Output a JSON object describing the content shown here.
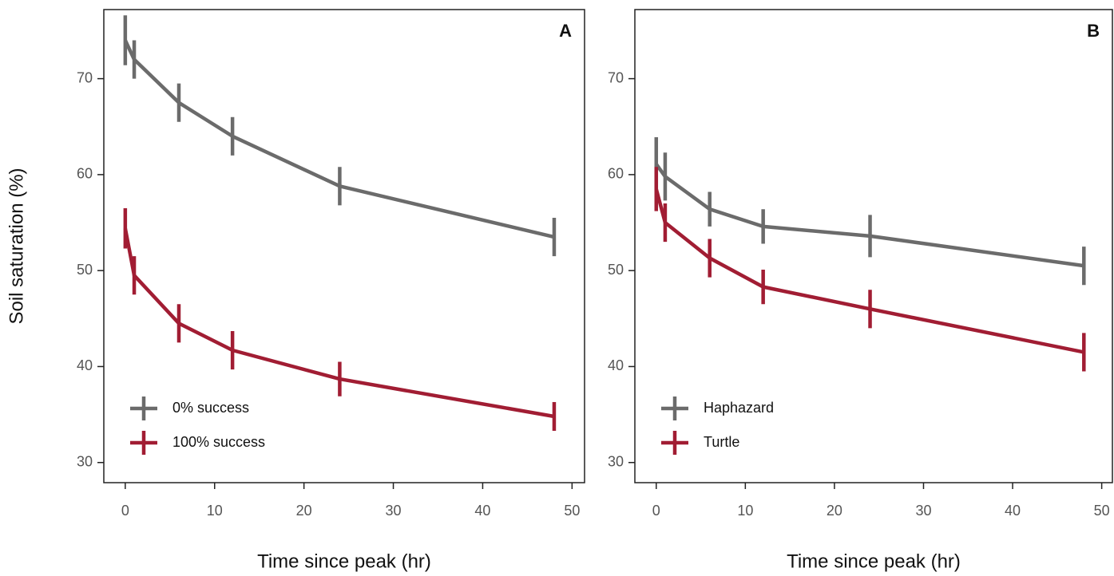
{
  "chart_data": [
    {
      "type": "line",
      "panel_label": "A",
      "ylabel": "Soil saturation (%)",
      "xlabel": "Time since peak (hr)",
      "x": [
        0,
        1,
        6,
        12,
        24,
        48
      ],
      "series": [
        {
          "name": "0% success",
          "color": "#6b6b6b",
          "values": [
            74,
            72,
            67.5,
            64,
            58.8,
            53.5
          ],
          "errors": [
            2.6,
            2,
            2,
            2,
            2,
            2
          ]
        },
        {
          "name": "100% success",
          "color": "#a11d33",
          "values": [
            54.4,
            49.5,
            44.5,
            41.7,
            38.7,
            34.8
          ],
          "errors": [
            2.1,
            2,
            2,
            2,
            1.8,
            1.5
          ]
        }
      ],
      "xlim": [
        -2.4,
        51.4
      ],
      "xticks": [
        0,
        10,
        20,
        30,
        40,
        50
      ],
      "ylim": [
        27.9,
        77.2
      ],
      "yticks": [
        30,
        40,
        50,
        60,
        70
      ],
      "legend": "lower left"
    },
    {
      "type": "line",
      "panel_label": "B",
      "xlabel": "Time since peak (hr)",
      "x": [
        0,
        1,
        6,
        12,
        24,
        48
      ],
      "series": [
        {
          "name": "Haphazard",
          "color": "#6b6b6b",
          "values": [
            61.1,
            59.8,
            56.4,
            54.6,
            53.6,
            50.5
          ],
          "errors": [
            2.8,
            2.5,
            1.8,
            1.8,
            2.2,
            2
          ]
        },
        {
          "name": "Turtle",
          "color": "#a11d33",
          "values": [
            58.5,
            55,
            51.3,
            48.3,
            46,
            41.5
          ],
          "errors": [
            2.3,
            2,
            2,
            1.8,
            2,
            2
          ]
        }
      ],
      "xlim": [
        -2.4,
        51.2
      ],
      "xticks": [
        0,
        10,
        20,
        30,
        40,
        50
      ],
      "ylim": [
        27.9,
        77.2
      ],
      "yticks": [
        30,
        40,
        50,
        60,
        70
      ],
      "legend": "lower left"
    }
  ]
}
